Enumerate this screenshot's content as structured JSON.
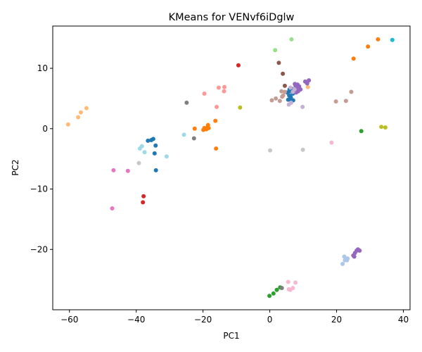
{
  "chart_data": {
    "type": "scatter",
    "title": "KMeans for VENvf6iDglw",
    "xlabel": "PC1",
    "ylabel": "PC2",
    "xlim": [
      -65,
      42
    ],
    "ylim": [
      -30.0,
      17.0
    ],
    "xticks": [
      -60,
      -40,
      -20,
      0,
      20,
      40
    ],
    "yticks": [
      -20,
      -10,
      0,
      10
    ],
    "grid": false,
    "legend": false,
    "colors": [
      "#1f77b4",
      "#aec7e8",
      "#ff7f0e",
      "#ffbb78",
      "#2ca02c",
      "#98df8a",
      "#d62728",
      "#ff9896",
      "#9467bd",
      "#c5b0d5",
      "#8c564b",
      "#c49c94",
      "#e377c2",
      "#f7b6d2",
      "#7f7f7f",
      "#c7c7c7",
      "#bcbd22",
      "#dbdb8d",
      "#17becf",
      "#9edae5"
    ],
    "series": [
      {
        "color_index": 0,
        "points": [
          [
            -36.5,
            -2.0
          ],
          [
            -35.5,
            -1.9
          ],
          [
            -34.9,
            -1.7
          ],
          [
            -34.2,
            -2.8
          ],
          [
            -34.5,
            -4.1
          ],
          [
            -34.1,
            -6.9
          ],
          [
            5.2,
            6.0
          ],
          [
            5.8,
            5.5
          ],
          [
            6.0,
            6.2
          ],
          [
            6.3,
            5.2
          ],
          [
            6.6,
            6.6
          ],
          [
            5.5,
            4.8
          ],
          [
            6.9,
            5.8
          ],
          [
            7.0,
            4.7
          ],
          [
            6.1,
            5.0
          ],
          [
            5.9,
            6.5
          ],
          [
            6.5,
            4.6
          ],
          [
            7.3,
            6.0
          ]
        ]
      },
      {
        "color_index": 1,
        "points": [
          [
            21.8,
            -22.4
          ],
          [
            22.3,
            -21.2
          ],
          [
            22.8,
            -21.5
          ],
          [
            23.1,
            -21.8
          ],
          [
            22.5,
            -21.8
          ],
          [
            23.3,
            -21.5
          ]
        ]
      },
      {
        "color_index": 2,
        "points": [
          [
            -22.5,
            0.0
          ],
          [
            -19.9,
            -0.2
          ],
          [
            -19.6,
            0.1
          ],
          [
            -19.0,
            -0.1
          ],
          [
            -18.6,
            0.3
          ],
          [
            -18.5,
            0.6
          ],
          [
            -18.3,
            0.1
          ],
          [
            -16.3,
            1.3
          ],
          [
            -16.1,
            -3.3
          ],
          [
            -19.5,
            0.0
          ],
          [
            25.1,
            11.6
          ],
          [
            29.4,
            13.6
          ],
          [
            32.4,
            14.8
          ]
        ]
      },
      {
        "color_index": 3,
        "points": [
          [
            -60.4,
            0.7
          ],
          [
            -57.4,
            1.9
          ],
          [
            -56.6,
            2.7
          ],
          [
            -54.9,
            3.4
          ],
          [
            11.4,
            6.9
          ]
        ]
      },
      {
        "color_index": 4,
        "points": [
          [
            -0.1,
            -27.7
          ],
          [
            1.1,
            -27.3
          ],
          [
            2.1,
            -26.7
          ],
          [
            3.1,
            -26.3
          ],
          [
            27.4,
            -0.4
          ]
        ]
      },
      {
        "color_index": 5,
        "points": [
          [
            1.6,
            13.0
          ],
          [
            6.5,
            14.8
          ]
        ]
      },
      {
        "color_index": 6,
        "points": [
          [
            -9.4,
            10.5
          ],
          [
            -37.8,
            -11.2
          ],
          [
            -38.0,
            -12.2
          ]
        ]
      },
      {
        "color_index": 7,
        "points": [
          [
            -19.6,
            5.8
          ],
          [
            -15.9,
            3.6
          ],
          [
            -15.3,
            6.8
          ],
          [
            -13.6,
            6.9
          ],
          [
            -13.7,
            6.2
          ]
        ]
      },
      {
        "color_index": 8,
        "points": [
          [
            7.3,
            6.4
          ],
          [
            7.7,
            7.1
          ],
          [
            8.1,
            6.8
          ],
          [
            8.5,
            6.2
          ],
          [
            7.9,
            6.0
          ],
          [
            8.8,
            7.0
          ],
          [
            9.2,
            6.5
          ],
          [
            7.5,
            7.4
          ],
          [
            8.3,
            7.3
          ],
          [
            10.6,
            7.8
          ],
          [
            11.2,
            7.5
          ],
          [
            11.7,
            8.0
          ],
          [
            25.0,
            -21.0
          ],
          [
            25.5,
            -20.6
          ],
          [
            26.0,
            -20.2
          ],
          [
            26.4,
            -20.0
          ],
          [
            26.9,
            -20.2
          ],
          [
            25.3,
            -21.2
          ]
        ]
      },
      {
        "color_index": 9,
        "points": [
          [
            6.2,
            6.8
          ],
          [
            6.9,
            6.1
          ],
          [
            7.4,
            6.5
          ],
          [
            9.8,
            3.6
          ],
          [
            5.7,
            4.0
          ],
          [
            6.4,
            4.3
          ]
        ]
      },
      {
        "color_index": 10,
        "points": [
          [
            2.7,
            10.9
          ],
          [
            3.9,
            9.1
          ],
          [
            4.5,
            7.1
          ]
        ]
      },
      {
        "color_index": 11,
        "points": [
          [
            0.6,
            4.7
          ],
          [
            1.8,
            5.0
          ],
          [
            3.0,
            4.6
          ],
          [
            3.5,
            6.2
          ],
          [
            4.0,
            5.5
          ],
          [
            3.7,
            5.3
          ],
          [
            4.5,
            6.1
          ],
          [
            19.8,
            4.5
          ],
          [
            22.8,
            4.6
          ],
          [
            24.4,
            6.1
          ]
        ]
      },
      {
        "color_index": 12,
        "points": [
          [
            -46.8,
            -6.9
          ],
          [
            -42.5,
            -7.0
          ],
          [
            -47.2,
            -13.2
          ]
        ]
      },
      {
        "color_index": 13,
        "points": [
          [
            5.5,
            -25.4
          ],
          [
            6.1,
            -26.7
          ],
          [
            6.9,
            -26.4
          ],
          [
            7.7,
            -25.5
          ],
          [
            5.7,
            -26.6
          ],
          [
            18.5,
            -2.3
          ]
        ]
      },
      {
        "color_index": 14,
        "points": [
          [
            -24.9,
            4.3
          ],
          [
            -22.7,
            -1.6
          ],
          [
            3.6,
            -26.4
          ]
        ]
      },
      {
        "color_index": 15,
        "points": [
          [
            -39.2,
            -5.7
          ],
          [
            0.1,
            -3.6
          ],
          [
            9.9,
            -3.5
          ]
        ]
      },
      {
        "color_index": 16,
        "points": [
          [
            -8.9,
            3.5
          ],
          [
            33.4,
            0.3
          ],
          [
            34.6,
            0.2
          ]
        ]
      },
      {
        "color_index": 17,
        "points": []
      },
      {
        "color_index": 18,
        "points": [
          [
            36.7,
            14.7
          ]
        ]
      },
      {
        "color_index": 19,
        "points": [
          [
            -38.9,
            -3.3
          ],
          [
            -38.3,
            -2.9
          ],
          [
            -37.5,
            -3.9
          ],
          [
            -30.9,
            -4.6
          ],
          [
            -25.7,
            -1.0
          ]
        ]
      }
    ]
  }
}
